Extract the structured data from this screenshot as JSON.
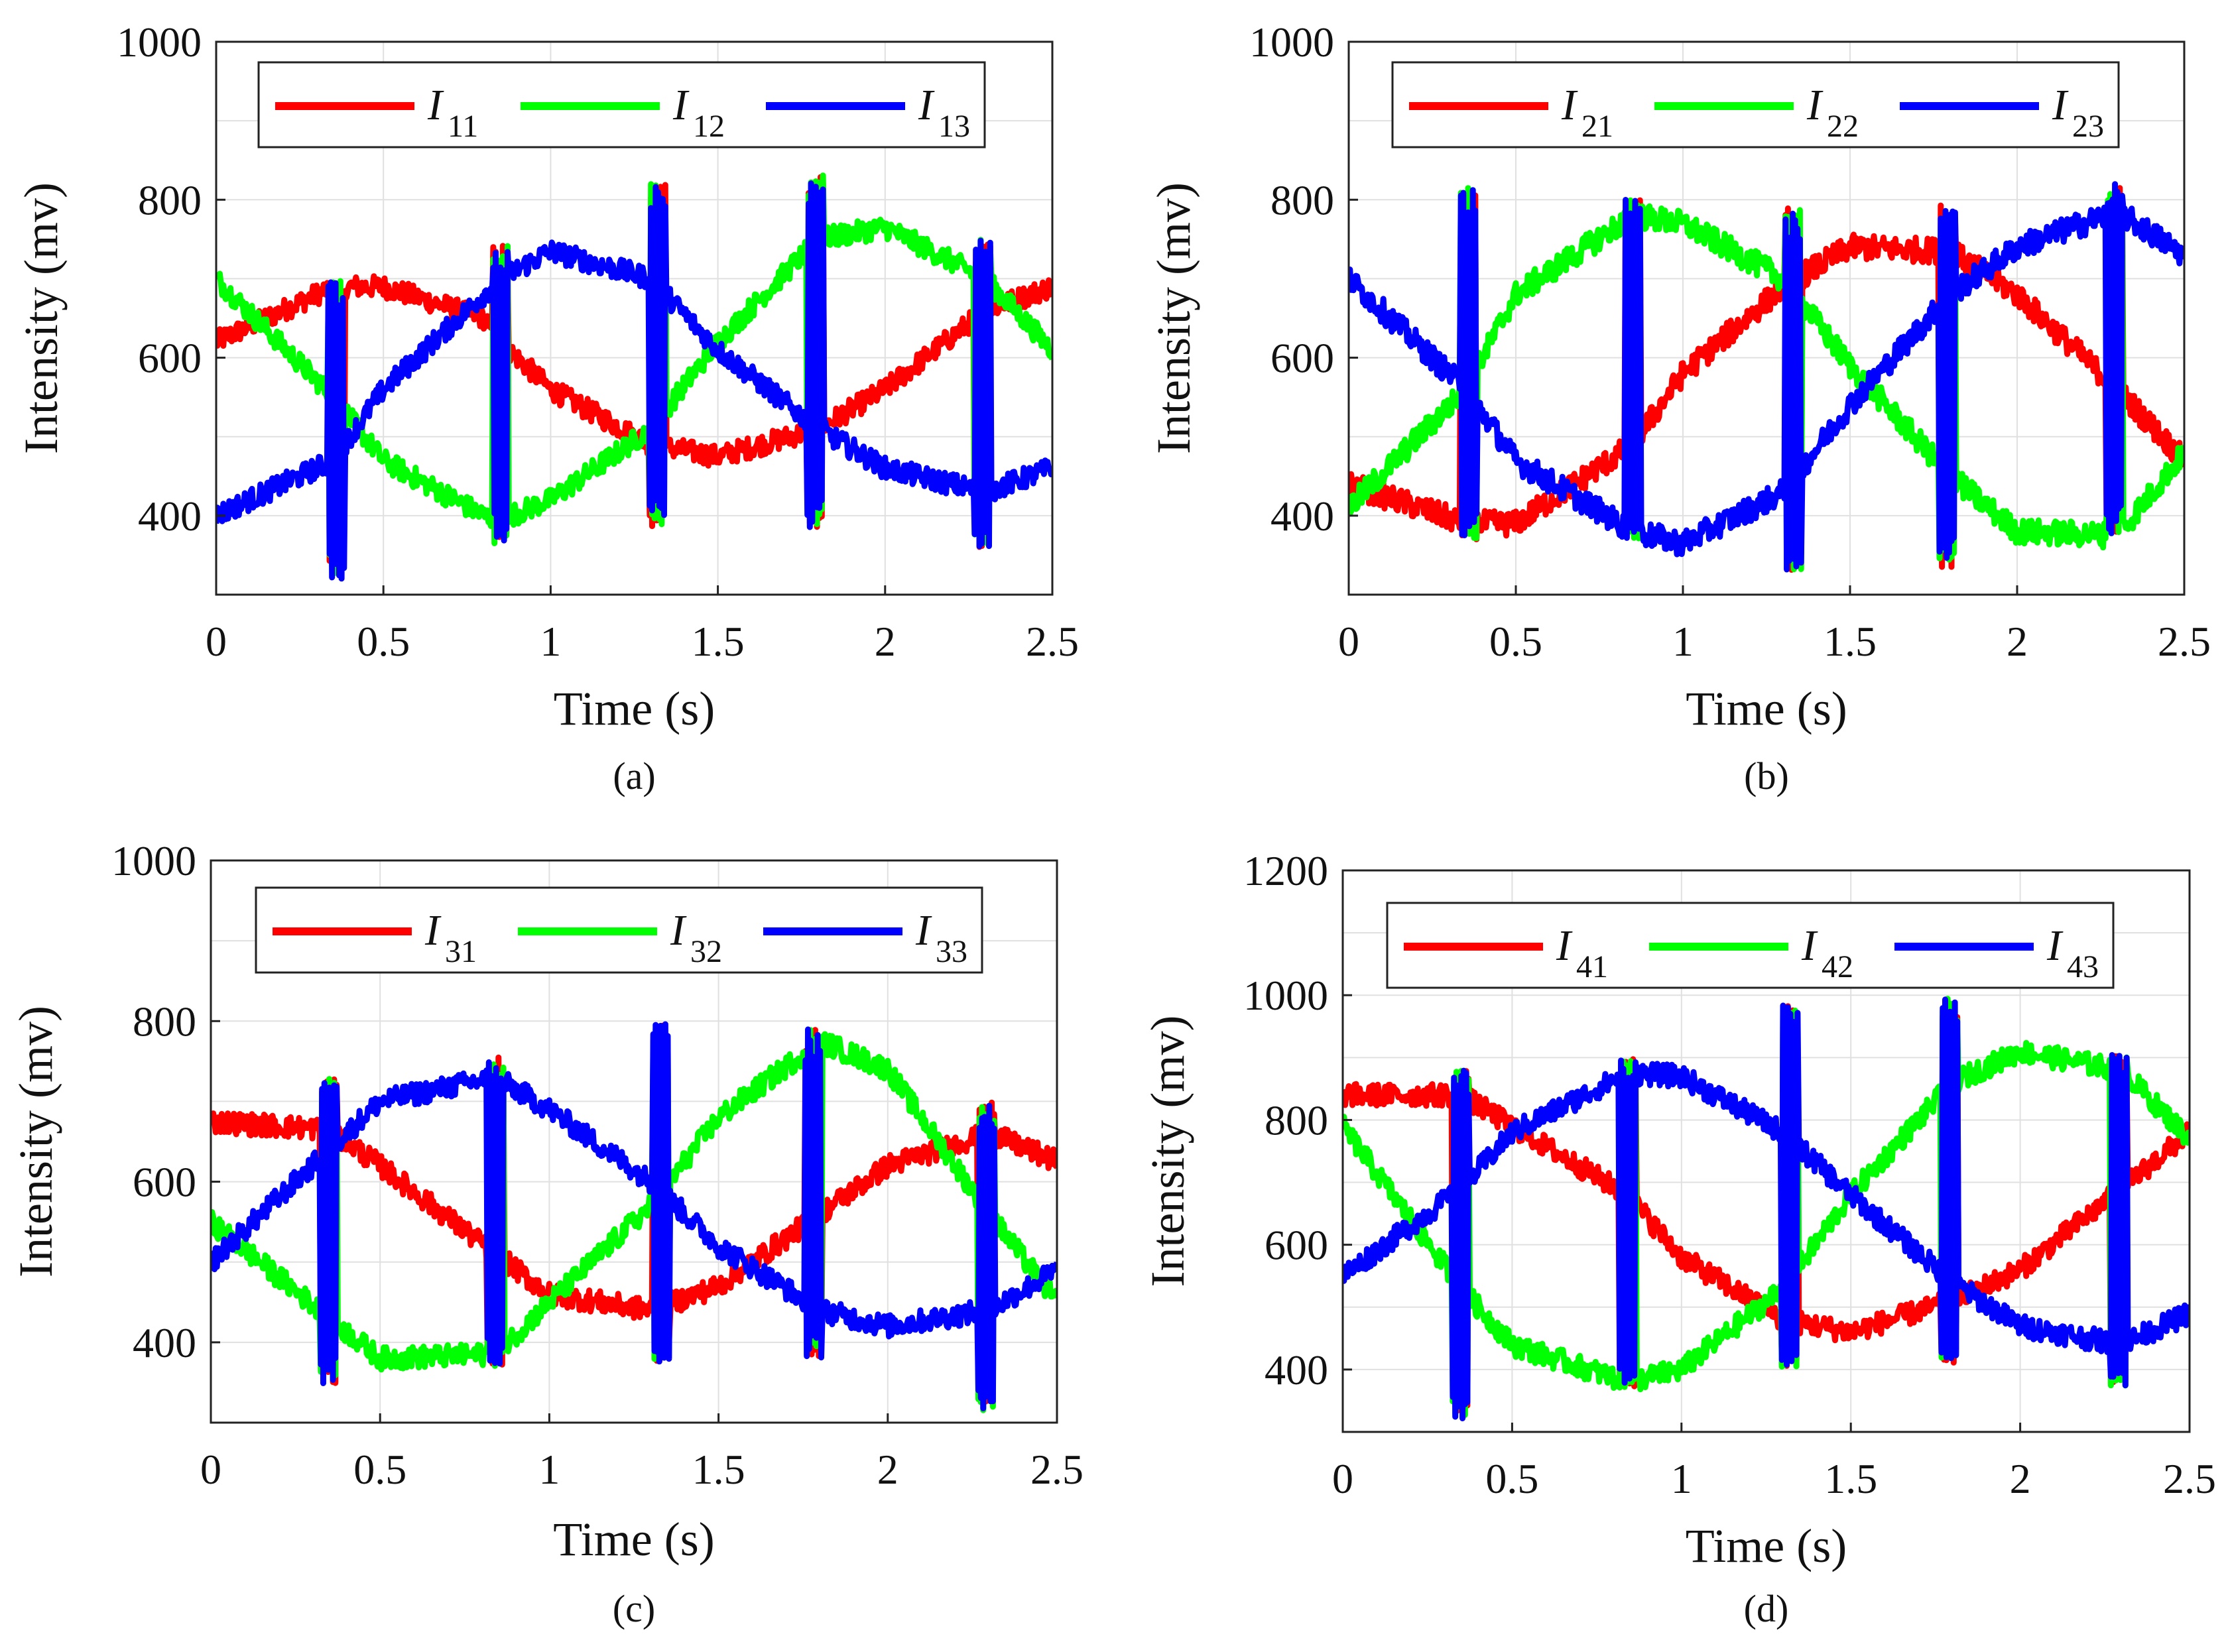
{
  "chart_data": [
    {
      "type": "line",
      "panel": "a",
      "caption": "(a)",
      "title": "",
      "xlabel": "Time (s)",
      "ylabel": "Intensity (mv)",
      "xlim": [
        0,
        2.5
      ],
      "ylim": [
        300,
        1000
      ],
      "xticks": [
        0,
        0.5,
        1,
        1.5,
        2,
        2.5
      ],
      "xtick_labels": [
        "0",
        "0.5",
        "1",
        "1.5",
        "2",
        "2.5"
      ],
      "yticks": [
        400,
        600,
        800,
        1000
      ],
      "ytick_labels": [
        "400",
        "600",
        "800",
        "1000"
      ],
      "grid": true,
      "legend_position": "top",
      "legend_symbol": "I",
      "noise": 14,
      "spikes": [
        {
          "t": 0.36,
          "lo": 320,
          "hi": 700
        },
        {
          "t": 0.85,
          "lo": 365,
          "hi": 745
        },
        {
          "t": 1.32,
          "lo": 385,
          "hi": 820
        },
        {
          "t": 1.79,
          "lo": 385,
          "hi": 835
        },
        {
          "t": 2.29,
          "lo": 360,
          "hi": 750
        }
      ],
      "series": [
        {
          "name": "I11",
          "sub": "11",
          "color": "#ff0000",
          "x": [
            0,
            0.35,
            0.5,
            0.8,
            0.85,
            1.0,
            1.3,
            1.5,
            1.8,
            2.0,
            2.3,
            2.5
          ],
          "values": [
            620,
            690,
            690,
            650,
            620,
            560,
            490,
            475,
            510,
            560,
            660,
            690
          ]
        },
        {
          "name": "I12",
          "sub": "12",
          "color": "#00ff00",
          "x": [
            0,
            0.35,
            0.5,
            0.8,
            0.85,
            1.0,
            1.3,
            1.5,
            1.8,
            2.0,
            2.3,
            2.5
          ],
          "values": [
            700,
            550,
            470,
            400,
            395,
            420,
            510,
            620,
            750,
            765,
            700,
            610
          ]
        },
        {
          "name": "I13",
          "sub": "13",
          "color": "#0000ff",
          "x": [
            0,
            0.35,
            0.5,
            0.8,
            0.85,
            1.0,
            1.3,
            1.5,
            1.8,
            2.0,
            2.3,
            2.5
          ],
          "values": [
            400,
            470,
            560,
            680,
            700,
            735,
            700,
            610,
            510,
            460,
            430,
            460
          ]
        }
      ]
    },
    {
      "type": "line",
      "panel": "b",
      "caption": "(b)",
      "title": "",
      "xlabel": "Time (s)",
      "ylabel": "Intensity (mv)",
      "xlim": [
        0,
        2.5
      ],
      "ylim": [
        300,
        1000
      ],
      "xticks": [
        0,
        0.5,
        1,
        1.5,
        2,
        2.5
      ],
      "xtick_labels": [
        "0",
        "0.5",
        "1",
        "1.5",
        "2",
        "2.5"
      ],
      "yticks": [
        400,
        600,
        800,
        1000
      ],
      "ytick_labels": [
        "400",
        "600",
        "800",
        "1000"
      ],
      "grid": true,
      "legend_position": "top",
      "legend_symbol": "I",
      "noise": 16,
      "spikes": [
        {
          "t": 0.36,
          "lo": 370,
          "hi": 815
        },
        {
          "t": 0.85,
          "lo": 370,
          "hi": 805
        },
        {
          "t": 1.33,
          "lo": 330,
          "hi": 790
        },
        {
          "t": 1.79,
          "lo": 335,
          "hi": 795
        },
        {
          "t": 2.29,
          "lo": 375,
          "hi": 820
        }
      ],
      "series": [
        {
          "name": "I21",
          "sub": "21",
          "color": "#ff0000",
          "x": [
            0,
            0.35,
            0.5,
            0.85,
            1.0,
            1.3,
            1.5,
            1.8,
            2.0,
            2.3,
            2.5
          ],
          "values": [
            440,
            390,
            390,
            490,
            580,
            690,
            740,
            735,
            680,
            560,
            470
          ]
        },
        {
          "name": "I22",
          "sub": "22",
          "color": "#00ff00",
          "x": [
            0,
            0.35,
            0.5,
            0.85,
            1.0,
            1.3,
            1.5,
            1.8,
            2.0,
            2.3,
            2.5
          ],
          "values": [
            410,
            560,
            680,
            780,
            770,
            700,
            590,
            450,
            380,
            375,
            480
          ]
        },
        {
          "name": "I23",
          "sub": "23",
          "color": "#0000ff",
          "x": [
            0,
            0.35,
            0.5,
            0.85,
            1.0,
            1.3,
            1.5,
            1.8,
            2.0,
            2.3,
            2.5
          ],
          "values": [
            700,
            560,
            470,
            380,
            365,
            430,
            540,
            680,
            740,
            785,
            730
          ]
        }
      ]
    },
    {
      "type": "line",
      "panel": "c",
      "caption": "(c)",
      "title": "",
      "xlabel": "Time (s)",
      "ylabel": "Intensity (mv)",
      "xlim": [
        0,
        2.5
      ],
      "ylim": [
        300,
        1000
      ],
      "xticks": [
        0,
        0.5,
        1,
        1.5,
        2,
        2.5
      ],
      "xtick_labels": [
        "0",
        "0.5",
        "1",
        "1.5",
        "2",
        "2.5"
      ],
      "yticks": [
        400,
        600,
        800,
        1000
      ],
      "ytick_labels": [
        "400",
        "600",
        "800",
        "1000"
      ],
      "grid": true,
      "legend_position": "top",
      "legend_symbol": "I",
      "noise": 14,
      "spikes": [
        {
          "t": 0.35,
          "lo": 345,
          "hi": 730
        },
        {
          "t": 0.84,
          "lo": 370,
          "hi": 755
        },
        {
          "t": 1.33,
          "lo": 375,
          "hi": 800
        },
        {
          "t": 1.78,
          "lo": 380,
          "hi": 790
        },
        {
          "t": 2.29,
          "lo": 315,
          "hi": 700
        }
      ],
      "series": [
        {
          "name": "I31",
          "sub": "31",
          "color": "#ff0000",
          "x": [
            0,
            0.35,
            0.5,
            0.84,
            1.0,
            1.3,
            1.5,
            1.8,
            2.0,
            2.3,
            2.5
          ],
          "values": [
            675,
            665,
            620,
            510,
            460,
            440,
            470,
            560,
            620,
            660,
            625
          ]
        },
        {
          "name": "I32",
          "sub": "32",
          "color": "#00ff00",
          "x": [
            0,
            0.35,
            0.5,
            0.84,
            1.0,
            1.3,
            1.5,
            1.8,
            2.0,
            2.3,
            2.5
          ],
          "values": [
            550,
            430,
            380,
            385,
            450,
            570,
            680,
            775,
            740,
            560,
            450
          ]
        },
        {
          "name": "I33",
          "sub": "33",
          "color": "#0000ff",
          "x": [
            0,
            0.35,
            0.5,
            0.84,
            1.0,
            1.3,
            1.5,
            1.8,
            2.0,
            2.3,
            2.5
          ],
          "values": [
            500,
            640,
            700,
            730,
            690,
            600,
            520,
            440,
            420,
            440,
            490
          ]
        }
      ]
    },
    {
      "type": "line",
      "panel": "d",
      "caption": "(d)",
      "title": "",
      "xlabel": "Time (s)",
      "ylabel": "Intensity (mv)",
      "xlim": [
        0,
        2.5
      ],
      "ylim": [
        300,
        1200
      ],
      "xticks": [
        0,
        0.5,
        1,
        1.5,
        2,
        2.5
      ],
      "xtick_labels": [
        "0",
        "0.5",
        "1",
        "1.5",
        "2",
        "2.5"
      ],
      "yticks": [
        400,
        600,
        800,
        1000,
        1200
      ],
      "ytick_labels": [
        "400",
        "600",
        "800",
        "1000",
        "1200"
      ],
      "grid": true,
      "legend_position": "top",
      "legend_symbol": "I",
      "noise": 18,
      "spikes": [
        {
          "t": 0.35,
          "lo": 320,
          "hi": 880
        },
        {
          "t": 0.84,
          "lo": 370,
          "hi": 900
        },
        {
          "t": 1.32,
          "lo": 400,
          "hi": 985
        },
        {
          "t": 1.79,
          "lo": 410,
          "hi": 995
        },
        {
          "t": 2.29,
          "lo": 370,
          "hi": 905
        }
      ],
      "series": [
        {
          "name": "I41",
          "sub": "41",
          "color": "#ff0000",
          "x": [
            0,
            0.35,
            0.5,
            0.84,
            1.0,
            1.3,
            1.5,
            1.8,
            2.0,
            2.3,
            2.5
          ],
          "values": [
            840,
            840,
            790,
            680,
            580,
            480,
            460,
            510,
            560,
            690,
            780
          ]
        },
        {
          "name": "I42",
          "sub": "42",
          "color": "#00ff00",
          "x": [
            0,
            0.35,
            0.5,
            0.84,
            1.0,
            1.3,
            1.5,
            1.8,
            2.0,
            2.3,
            2.5
          ],
          "values": [
            790,
            530,
            440,
            380,
            400,
            530,
            680,
            860,
            910,
            880,
            770
          ]
        },
        {
          "name": "I43",
          "sub": "43",
          "color": "#0000ff",
          "x": [
            0,
            0.35,
            0.5,
            0.84,
            1.0,
            1.3,
            1.5,
            1.8,
            2.0,
            2.3,
            2.5
          ],
          "values": [
            550,
            690,
            780,
            875,
            870,
            780,
            680,
            540,
            470,
            440,
            490
          ]
        }
      ]
    }
  ]
}
